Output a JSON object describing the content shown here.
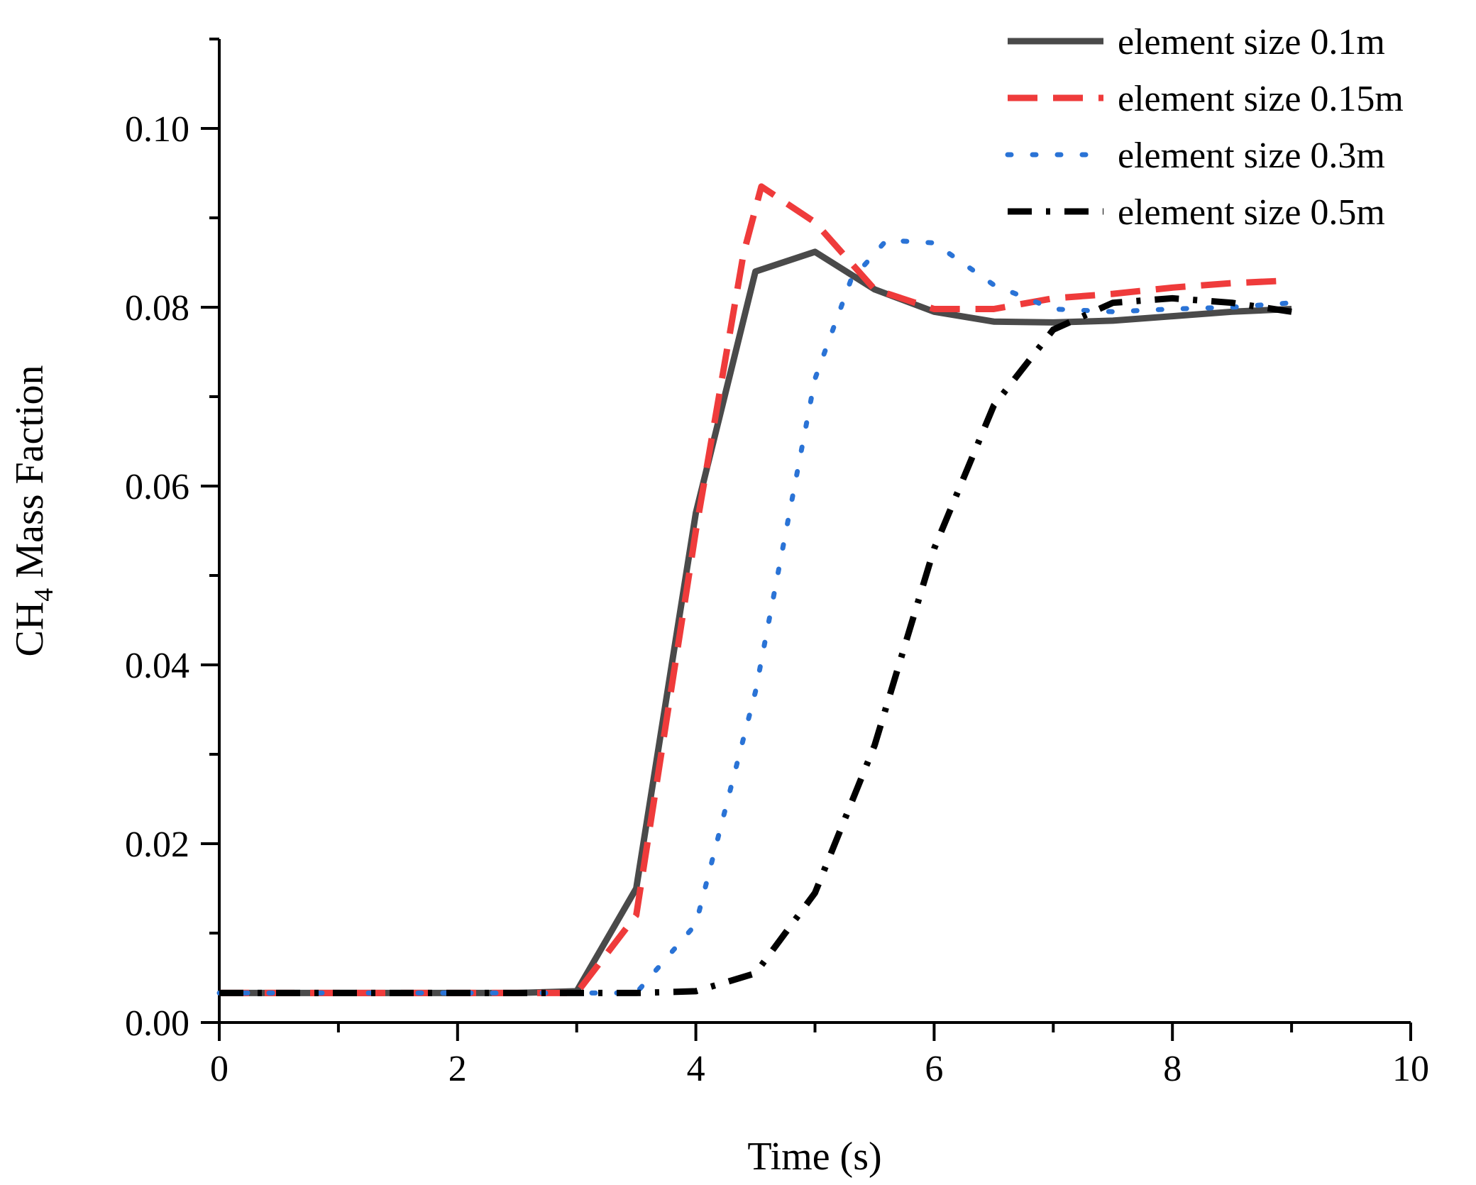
{
  "chart_data": {
    "type": "line",
    "title": "",
    "xlabel": "Time (s)",
    "ylabel_main": "CH",
    "ylabel_sub": "4",
    "ylabel_rest": " Mass Faction",
    "xlim": [
      0,
      10
    ],
    "ylim": [
      0,
      0.11
    ],
    "x_ticks": [
      "0",
      "2",
      "4",
      "6",
      "8",
      "10"
    ],
    "x_tick_values": [
      0,
      2,
      4,
      6,
      8,
      10
    ],
    "y_ticks": [
      "0.00",
      "0.02",
      "0.04",
      "0.06",
      "0.08",
      "0.10"
    ],
    "y_tick_values": [
      0,
      0.02,
      0.04,
      0.06,
      0.08,
      0.1
    ],
    "x_minor_step": 1,
    "y_minor_step": 0.01,
    "grid": false,
    "legend_position": "top-right",
    "series": [
      {
        "name": "element size 0.1m",
        "color": "#4a4a4a",
        "style": "solid",
        "points": [
          [
            0,
            0.0033
          ],
          [
            0.5,
            0.0033
          ],
          [
            1,
            0.0033
          ],
          [
            1.5,
            0.0033
          ],
          [
            2,
            0.0033
          ],
          [
            2.5,
            0.0033
          ],
          [
            3,
            0.0035
          ],
          [
            3.5,
            0.015
          ],
          [
            4,
            0.057
          ],
          [
            4.5,
            0.084
          ],
          [
            5,
            0.0862
          ],
          [
            5.5,
            0.082
          ],
          [
            6,
            0.0795
          ],
          [
            6.5,
            0.0784
          ],
          [
            7,
            0.0783
          ],
          [
            7.5,
            0.0785
          ],
          [
            8,
            0.079
          ],
          [
            8.5,
            0.0795
          ],
          [
            9,
            0.0798
          ]
        ]
      },
      {
        "name": "element size 0.15m",
        "color": "#ef3b3b",
        "style": "dashed",
        "points": [
          [
            0,
            0.0033
          ],
          [
            0.5,
            0.0033
          ],
          [
            1,
            0.0033
          ],
          [
            1.5,
            0.0033
          ],
          [
            2,
            0.0033
          ],
          [
            2.5,
            0.0033
          ],
          [
            3,
            0.0033
          ],
          [
            3.5,
            0.012
          ],
          [
            4,
            0.055
          ],
          [
            4.4,
            0.086
          ],
          [
            4.55,
            0.0935
          ],
          [
            5,
            0.0895
          ],
          [
            5.5,
            0.082
          ],
          [
            6,
            0.0798
          ],
          [
            6.5,
            0.0798
          ],
          [
            7,
            0.081
          ],
          [
            7.5,
            0.0815
          ],
          [
            8,
            0.0822
          ],
          [
            8.5,
            0.0827
          ],
          [
            9,
            0.083
          ]
        ]
      },
      {
        "name": "element size 0.3m",
        "color": "#2a73d6",
        "style": "dotted",
        "points": [
          [
            0,
            0.0033
          ],
          [
            0.5,
            0.0033
          ],
          [
            1,
            0.0033
          ],
          [
            1.5,
            0.0033
          ],
          [
            2,
            0.0033
          ],
          [
            2.5,
            0.0033
          ],
          [
            3,
            0.0033
          ],
          [
            3.5,
            0.0033
          ],
          [
            4,
            0.011
          ],
          [
            4.5,
            0.037
          ],
          [
            5,
            0.072
          ],
          [
            5.3,
            0.083
          ],
          [
            5.6,
            0.0875
          ],
          [
            6,
            0.0872
          ],
          [
            6.5,
            0.0825
          ],
          [
            7,
            0.0798
          ],
          [
            7.5,
            0.0795
          ],
          [
            8,
            0.0798
          ],
          [
            8.5,
            0.08
          ],
          [
            9,
            0.0805
          ]
        ]
      },
      {
        "name": "element size 0.5m",
        "color": "#000000",
        "style": "dashdot",
        "points": [
          [
            0,
            0.0033
          ],
          [
            0.5,
            0.0033
          ],
          [
            1,
            0.0033
          ],
          [
            1.5,
            0.0033
          ],
          [
            2,
            0.0033
          ],
          [
            2.5,
            0.0033
          ],
          [
            3,
            0.0033
          ],
          [
            3.5,
            0.0033
          ],
          [
            4,
            0.0035
          ],
          [
            4.5,
            0.0055
          ],
          [
            5,
            0.0145
          ],
          [
            5.5,
            0.031
          ],
          [
            6,
            0.053
          ],
          [
            6.5,
            0.069
          ],
          [
            7,
            0.0775
          ],
          [
            7.5,
            0.0805
          ],
          [
            8,
            0.081
          ],
          [
            8.5,
            0.0805
          ],
          [
            9,
            0.0795
          ]
        ]
      }
    ]
  }
}
